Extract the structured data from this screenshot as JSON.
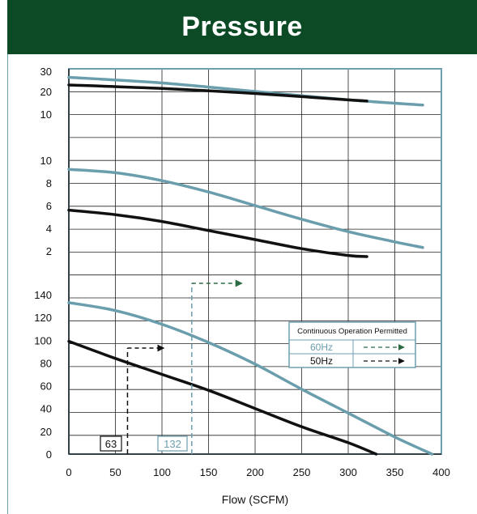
{
  "header": {
    "title": "Pressure"
  },
  "colors": {
    "header_bg": "#0c4a26",
    "hz60": "#6a9ead",
    "hz50": "#111111",
    "arrow60": "#2c6b44",
    "grid": "#222222",
    "frame": "#6e9fb0"
  },
  "chart_data": [
    {
      "type": "line",
      "ylabel": "",
      "xlabel": "Flow (SCFM)",
      "xlim": [
        0,
        400
      ],
      "x_ticks": [
        "0",
        "50",
        "100",
        "150",
        "200",
        "250",
        "300",
        "350",
        "400"
      ],
      "y_ticks": [
        "10",
        "20",
        "30"
      ],
      "ylim": [
        10,
        30
      ],
      "series": [
        {
          "name": "60Hz",
          "x": [
            0,
            100,
            200,
            300,
            380
          ],
          "y": [
            27,
            24.2,
            20,
            16.3,
            14
          ]
        },
        {
          "name": "50Hz",
          "x": [
            0,
            100,
            200,
            300,
            320
          ],
          "y": [
            23.2,
            21.5,
            19.1,
            16.3,
            15.8
          ]
        }
      ]
    },
    {
      "type": "line",
      "ylabel": "",
      "xlabel": "Flow (SCFM)",
      "xlim": [
        0,
        400
      ],
      "y_ticks": [
        "2",
        "4",
        "6",
        "8",
        "10"
      ],
      "ylim": [
        0,
        12
      ],
      "series": [
        {
          "name": "60Hz",
          "x": [
            0,
            50,
            100,
            150,
            200,
            250,
            300,
            350,
            380
          ],
          "y": [
            9.2,
            8.9,
            8.2,
            7.2,
            6,
            4.8,
            3.7,
            2.8,
            2.3
          ]
        },
        {
          "name": "50Hz",
          "x": [
            0,
            50,
            100,
            150,
            200,
            250,
            300,
            320
          ],
          "y": [
            5.6,
            5.2,
            4.6,
            3.8,
            3,
            2.2,
            1.6,
            1.5
          ]
        }
      ]
    },
    {
      "type": "line",
      "ylabel": "",
      "xlabel": "Flow (SCFM)",
      "xlim": [
        0,
        400
      ],
      "y_ticks": [
        "0",
        "20",
        "40",
        "60",
        "80",
        "100",
        "120",
        "140"
      ],
      "ylim": [
        0,
        150
      ],
      "series": [
        {
          "name": "60Hz",
          "x": [
            0,
            50,
            100,
            150,
            200,
            250,
            300,
            350,
            390
          ],
          "y": [
            133,
            126,
            114,
            98,
            79,
            57,
            36,
            15,
            0
          ]
        },
        {
          "name": "50Hz",
          "x": [
            0,
            50,
            100,
            150,
            200,
            250,
            300,
            330
          ],
          "y": [
            99,
            84,
            70,
            56,
            40,
            24,
            10,
            0
          ]
        }
      ],
      "annotations": [
        {
          "label": "63",
          "x": 63,
          "series": "50Hz"
        },
        {
          "label": "132",
          "x": 132,
          "series": "60Hz"
        }
      ],
      "legend": {
        "title": "Continuous  Operation Permitted",
        "entries": [
          "60Hz",
          "50Hz"
        ],
        "placement": "right"
      }
    }
  ]
}
